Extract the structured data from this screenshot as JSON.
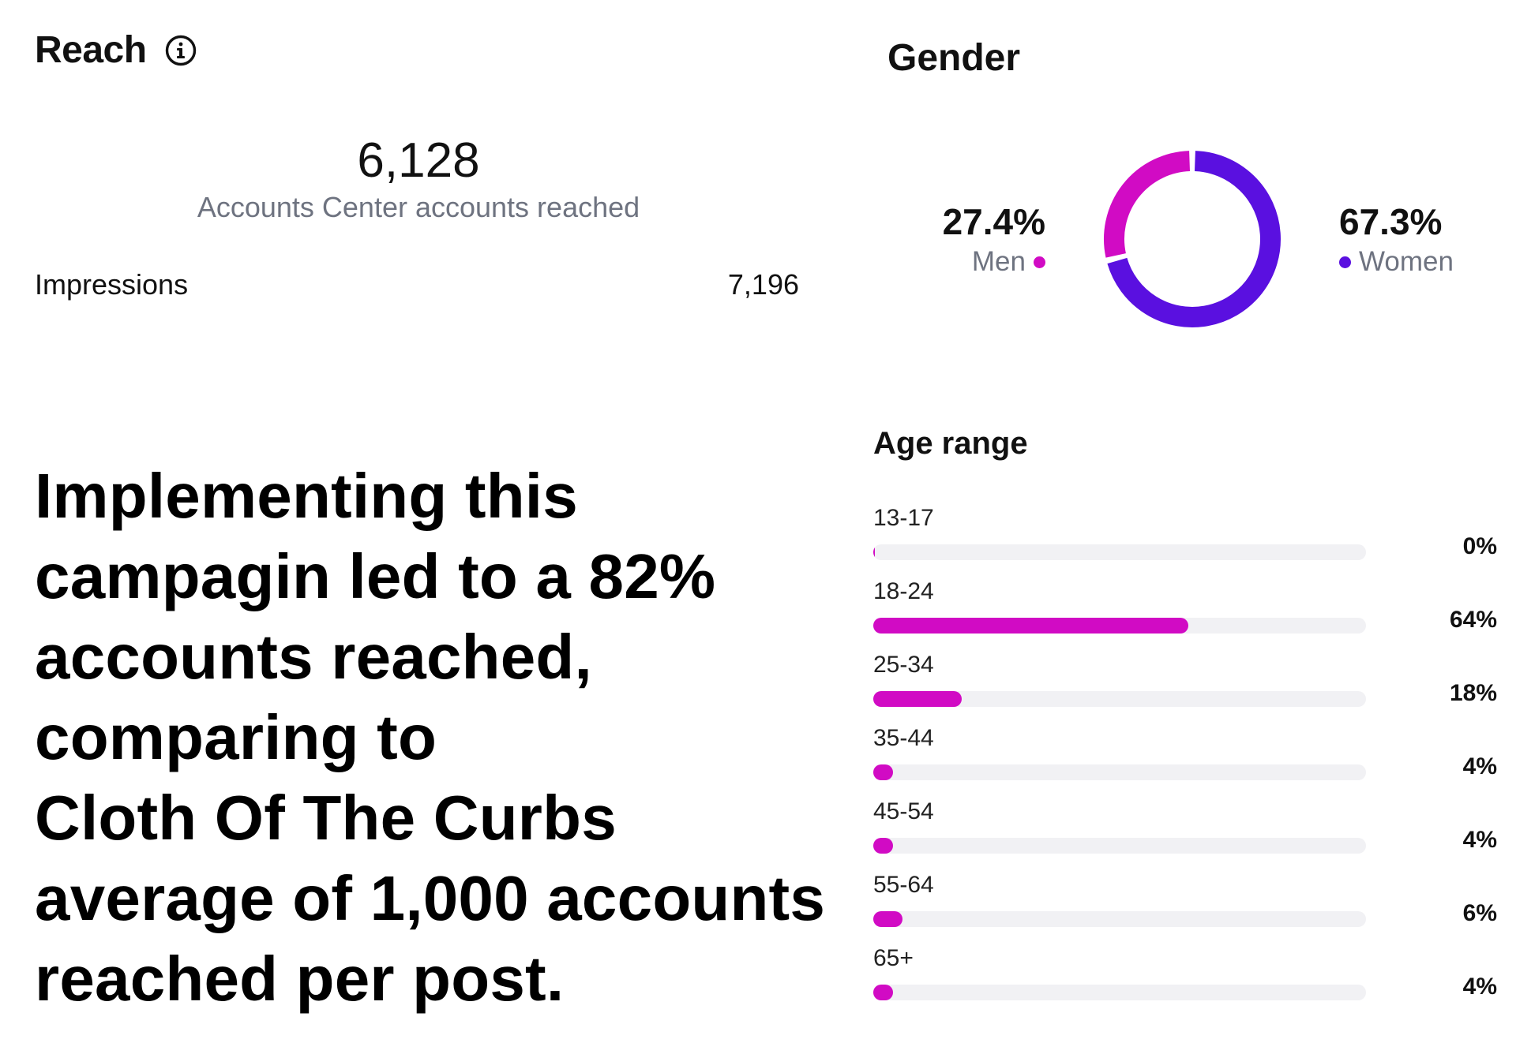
{
  "reach": {
    "title": "Reach",
    "info_icon": "info-icon",
    "accounts_reached": "6,128",
    "accounts_reached_label": "Accounts Center accounts reached",
    "impressions_label": "Impressions",
    "impressions_value": "7,196"
  },
  "gender": {
    "title": "Gender",
    "men": {
      "percent": "27.4%",
      "label": "Men",
      "value": 27.4,
      "color": "#d10bc4"
    },
    "women": {
      "percent": "67.3%",
      "label": "Women",
      "value": 67.3,
      "color": "#5a10e0"
    }
  },
  "headline": {
    "lines": [
      "Implementing this",
      "campagin led to a 82%",
      "accounts reached,",
      "comparing to",
      "Cloth Of The Curbs",
      "average of 1,000 accounts",
      "reached per post."
    ]
  },
  "age": {
    "title": "Age range",
    "bar_color": "#d10bc4",
    "track_color": "#f1f1f4"
  },
  "chart_data": {
    "type": "bar",
    "title": "Age range",
    "categories": [
      "13-17",
      "18-24",
      "25-34",
      "35-44",
      "45-54",
      "55-64",
      "65+"
    ],
    "values": [
      0,
      64,
      18,
      4,
      4,
      6,
      4
    ],
    "value_labels": [
      "0%",
      "64%",
      "18%",
      "4%",
      "4%",
      "6%",
      "4%"
    ],
    "ylim": [
      0,
      100
    ],
    "grid": false,
    "orientation": "horizontal"
  }
}
